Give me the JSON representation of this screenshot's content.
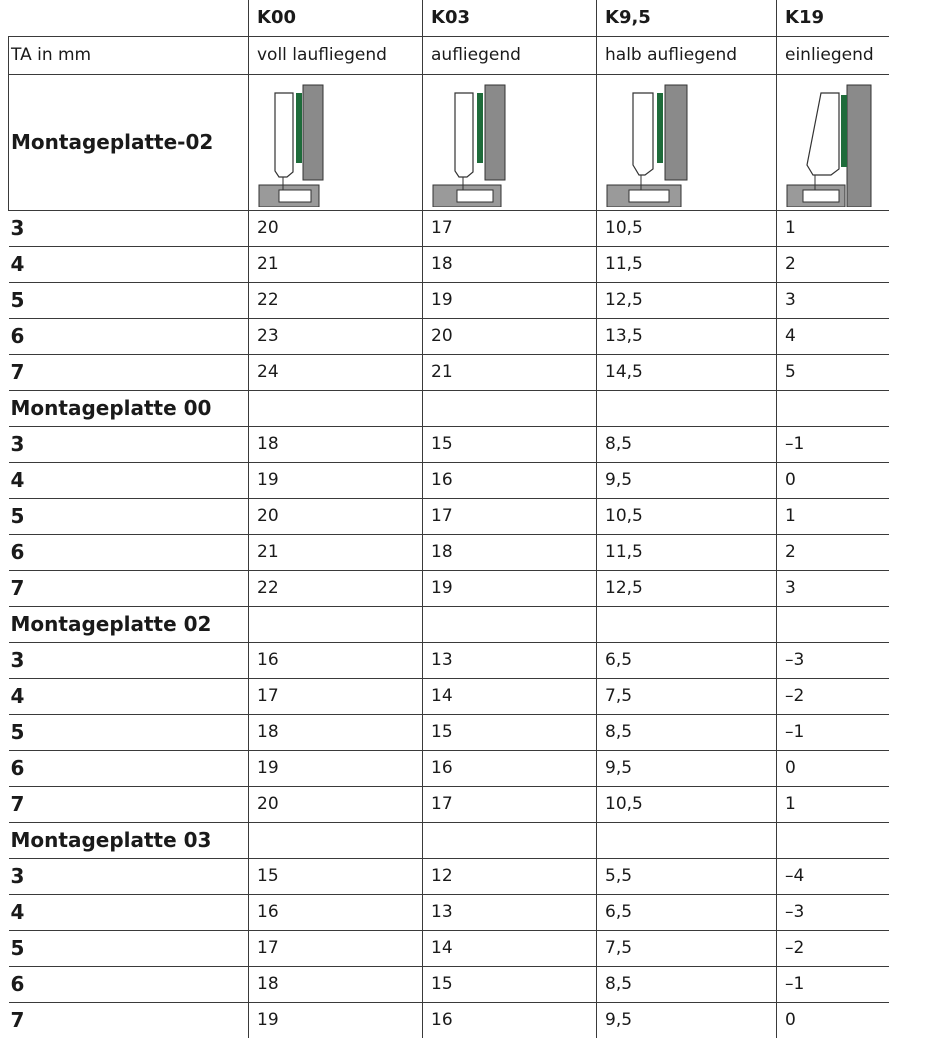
{
  "header": {
    "blank": "",
    "cols": [
      "K00",
      "K03",
      "K9,5",
      "K19"
    ]
  },
  "subheader": {
    "label": "TA in mm",
    "types": [
      "voll laufliegend",
      "aufliegend",
      "halb aufliegend",
      "einliegend"
    ]
  },
  "image_row": {
    "label": "Montageplatte-02",
    "icons": [
      "hinge-full-overlay-icon",
      "hinge-overlay-icon",
      "hinge-half-overlay-icon",
      "hinge-inset-icon"
    ]
  },
  "sections": [
    {
      "title": "",
      "rows": [
        {
          "ta": "3",
          "v": [
            "20",
            "17",
            "10,5",
            "1"
          ]
        },
        {
          "ta": "4",
          "v": [
            "21",
            "18",
            "11,5",
            "2"
          ]
        },
        {
          "ta": "5",
          "v": [
            "22",
            "19",
            "12,5",
            "3"
          ]
        },
        {
          "ta": "6",
          "v": [
            "23",
            "20",
            "13,5",
            "4"
          ]
        },
        {
          "ta": "7",
          "v": [
            "24",
            "21",
            "14,5",
            "5"
          ]
        }
      ]
    },
    {
      "title": "Montageplatte 00",
      "rows": [
        {
          "ta": "3",
          "v": [
            "18",
            "15",
            "8,5",
            "–1"
          ]
        },
        {
          "ta": "4",
          "v": [
            "19",
            "16",
            "9,5",
            "0"
          ]
        },
        {
          "ta": "5",
          "v": [
            "20",
            "17",
            "10,5",
            "1"
          ]
        },
        {
          "ta": "6",
          "v": [
            "21",
            "18",
            "11,5",
            "2"
          ]
        },
        {
          "ta": "7",
          "v": [
            "22",
            "19",
            "12,5",
            "3"
          ]
        }
      ]
    },
    {
      "title": "Montageplatte 02",
      "rows": [
        {
          "ta": "3",
          "v": [
            "16",
            "13",
            "6,5",
            "–3"
          ]
        },
        {
          "ta": "4",
          "v": [
            "17",
            "14",
            "7,5",
            "–2"
          ]
        },
        {
          "ta": "5",
          "v": [
            "18",
            "15",
            "8,5",
            "–1"
          ]
        },
        {
          "ta": "6",
          "v": [
            "19",
            "16",
            "9,5",
            "0"
          ]
        },
        {
          "ta": "7",
          "v": [
            "20",
            "17",
            "10,5",
            "1"
          ]
        }
      ]
    },
    {
      "title": "Montageplatte 03",
      "rows": [
        {
          "ta": "3",
          "v": [
            "15",
            "12",
            "5,5",
            "–4"
          ]
        },
        {
          "ta": "4",
          "v": [
            "16",
            "13",
            "6,5",
            "–3"
          ]
        },
        {
          "ta": "5",
          "v": [
            "17",
            "14",
            "7,5",
            "–2"
          ]
        },
        {
          "ta": "6",
          "v": [
            "18",
            "15",
            "8,5",
            "–1"
          ]
        },
        {
          "ta": "7",
          "v": [
            "19",
            "16",
            "9,5",
            "0"
          ]
        }
      ]
    }
  ],
  "colors": {
    "grey": "#8a8a8a",
    "green": "#1e6b3a",
    "line": "#3a3a3a"
  }
}
